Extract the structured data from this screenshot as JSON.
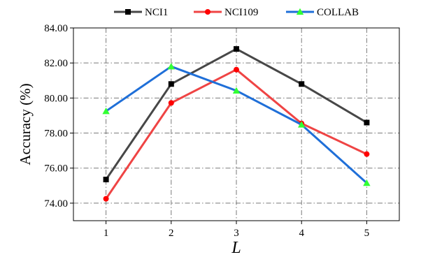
{
  "chart_data": {
    "type": "line",
    "categories": [
      "1",
      "2",
      "3",
      "4",
      "5"
    ],
    "x": [
      1,
      2,
      3,
      4,
      5
    ],
    "series": [
      {
        "name": "NCI1",
        "color": "#474747",
        "marker": "square",
        "marker_color": "#000000",
        "values": [
          75.35,
          80.8,
          82.8,
          80.8,
          78.6
        ]
      },
      {
        "name": "NCI109",
        "color": "#ef4444",
        "marker": "circle",
        "marker_color": "#ff0000",
        "values": [
          74.25,
          79.72,
          81.62,
          78.55,
          76.8
        ]
      },
      {
        "name": "COLLAB",
        "color": "#1f6fd8",
        "marker": "triangle",
        "marker_color": "#33ff33",
        "values": [
          79.25,
          81.8,
          80.42,
          78.48,
          75.15
        ]
      }
    ],
    "xlabel": "L",
    "ylabel": "Accuracy (%)",
    "xlim": [
      0.5,
      5.5
    ],
    "ylim": [
      73.0,
      84.0
    ],
    "yticks": [
      "74.00",
      "76.00",
      "78.00",
      "80.00",
      "82.00",
      "84.00"
    ],
    "ytick_values": [
      74,
      76,
      78,
      80,
      82,
      84
    ],
    "xticks": [
      "1",
      "2",
      "3",
      "4",
      "5"
    ],
    "grid": true,
    "legend_position": "top"
  }
}
